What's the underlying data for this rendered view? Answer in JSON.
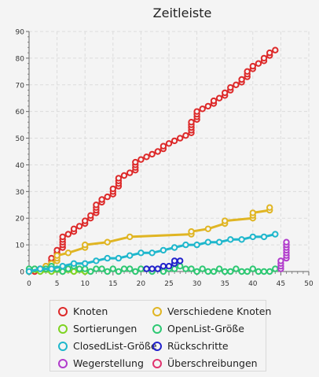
{
  "chart_data": {
    "type": "line",
    "title": "Zeitleiste",
    "xlabel": "",
    "ylabel": "",
    "xlim": [
      0,
      50
    ],
    "ylim": [
      0,
      90
    ],
    "xticks": [
      0,
      5,
      10,
      15,
      20,
      25,
      30,
      35,
      40,
      45,
      50
    ],
    "yticks": [
      0,
      10,
      20,
      30,
      40,
      50,
      60,
      70,
      80,
      90
    ],
    "grid": true,
    "legend_placement": "bottom",
    "series": [
      {
        "name": "Knoten",
        "color": "#dd2a2a",
        "points": [
          [
            0,
            0
          ],
          [
            1,
            0
          ],
          [
            2,
            1
          ],
          [
            3,
            2
          ],
          [
            4,
            3
          ],
          [
            4,
            4
          ],
          [
            4,
            5
          ],
          [
            5,
            6
          ],
          [
            5,
            7
          ],
          [
            5,
            8
          ],
          [
            6,
            9
          ],
          [
            6,
            10
          ],
          [
            6,
            11
          ],
          [
            6,
            12
          ],
          [
            6,
            13
          ],
          [
            7,
            14
          ],
          [
            8,
            15
          ],
          [
            8,
            16
          ],
          [
            9,
            17
          ],
          [
            10,
            18
          ],
          [
            10,
            19
          ],
          [
            11,
            20
          ],
          [
            11,
            21
          ],
          [
            12,
            22
          ],
          [
            12,
            23
          ],
          [
            12,
            24
          ],
          [
            12,
            25
          ],
          [
            13,
            26
          ],
          [
            13,
            27
          ],
          [
            14,
            28
          ],
          [
            15,
            29
          ],
          [
            15,
            30
          ],
          [
            15,
            31
          ],
          [
            16,
            32
          ],
          [
            16,
            33
          ],
          [
            16,
            34
          ],
          [
            16,
            35
          ],
          [
            17,
            36
          ],
          [
            18,
            37
          ],
          [
            19,
            38
          ],
          [
            19,
            39
          ],
          [
            19,
            40
          ],
          [
            19,
            41
          ],
          [
            20,
            42
          ],
          [
            21,
            43
          ],
          [
            22,
            44
          ],
          [
            23,
            45
          ],
          [
            24,
            46
          ],
          [
            24,
            47
          ],
          [
            25,
            48
          ],
          [
            26,
            49
          ],
          [
            27,
            50
          ],
          [
            28,
            51
          ],
          [
            29,
            52
          ],
          [
            29,
            53
          ],
          [
            29,
            54
          ],
          [
            29,
            55
          ],
          [
            29,
            56
          ],
          [
            30,
            57
          ],
          [
            30,
            58
          ],
          [
            30,
            59
          ],
          [
            30,
            60
          ],
          [
            31,
            61
          ],
          [
            32,
            62
          ],
          [
            33,
            63
          ],
          [
            33,
            64
          ],
          [
            34,
            65
          ],
          [
            35,
            66
          ],
          [
            35,
            67
          ],
          [
            36,
            68
          ],
          [
            36,
            69
          ],
          [
            37,
            70
          ],
          [
            38,
            71
          ],
          [
            38,
            72
          ],
          [
            39,
            73
          ],
          [
            39,
            74
          ],
          [
            39,
            75
          ],
          [
            40,
            76
          ],
          [
            40,
            77
          ],
          [
            41,
            78
          ],
          [
            42,
            79
          ],
          [
            42,
            80
          ],
          [
            43,
            81
          ],
          [
            43,
            82
          ],
          [
            44,
            83
          ]
        ]
      },
      {
        "name": "Verschiedene Knoten",
        "color": "#e0b523",
        "points": [
          [
            0,
            0
          ],
          [
            1,
            1
          ],
          [
            2,
            1
          ],
          [
            3,
            2
          ],
          [
            4,
            3
          ],
          [
            5,
            4
          ],
          [
            5,
            5
          ],
          [
            5,
            6
          ],
          [
            7,
            7
          ],
          [
            10,
            9
          ],
          [
            10,
            10
          ],
          [
            14,
            11
          ],
          [
            18,
            13
          ],
          [
            29,
            14
          ],
          [
            29,
            15
          ],
          [
            32,
            16
          ],
          [
            35,
            18
          ],
          [
            35,
            19
          ],
          [
            40,
            20
          ],
          [
            40,
            21
          ],
          [
            40,
            22
          ],
          [
            43,
            23
          ],
          [
            43,
            24
          ]
        ]
      },
      {
        "name": "Sortierungen",
        "color": "#7ed321",
        "points": [
          [
            0,
            0
          ],
          [
            2,
            0
          ],
          [
            4,
            0
          ],
          [
            6,
            0
          ],
          [
            8,
            0
          ],
          [
            10,
            0
          ]
        ]
      },
      {
        "name": "OpenList-Größe",
        "color": "#2ec873",
        "points": [
          [
            0,
            1
          ],
          [
            1,
            1
          ],
          [
            2,
            1
          ],
          [
            3,
            1
          ],
          [
            4,
            2
          ],
          [
            5,
            1
          ],
          [
            6,
            0
          ],
          [
            7,
            1
          ],
          [
            8,
            2
          ],
          [
            9,
            1
          ],
          [
            10,
            1
          ],
          [
            11,
            0
          ],
          [
            12,
            1
          ],
          [
            13,
            1
          ],
          [
            14,
            0
          ],
          [
            15,
            1
          ],
          [
            16,
            0
          ],
          [
            17,
            1
          ],
          [
            18,
            1
          ],
          [
            19,
            0
          ],
          [
            20,
            1
          ],
          [
            21,
            1
          ],
          [
            22,
            0
          ],
          [
            23,
            1
          ],
          [
            24,
            0
          ],
          [
            25,
            1
          ],
          [
            26,
            1
          ],
          [
            27,
            2
          ],
          [
            28,
            1
          ],
          [
            29,
            1
          ],
          [
            30,
            0
          ],
          [
            31,
            1
          ],
          [
            32,
            0
          ],
          [
            33,
            0
          ],
          [
            34,
            1
          ],
          [
            35,
            0
          ],
          [
            36,
            0
          ],
          [
            37,
            1
          ],
          [
            38,
            0
          ],
          [
            39,
            0
          ],
          [
            40,
            1
          ],
          [
            41,
            0
          ],
          [
            42,
            0
          ],
          [
            43,
            0
          ],
          [
            44,
            1
          ]
        ]
      },
      {
        "name": "ClosedList-Größe",
        "color": "#1fb7cc",
        "points": [
          [
            0,
            0
          ],
          [
            2,
            1
          ],
          [
            4,
            1
          ],
          [
            6,
            2
          ],
          [
            8,
            3
          ],
          [
            10,
            3
          ],
          [
            12,
            4
          ],
          [
            14,
            5
          ],
          [
            16,
            5
          ],
          [
            18,
            6
          ],
          [
            20,
            7
          ],
          [
            22,
            7
          ],
          [
            24,
            8
          ],
          [
            26,
            9
          ],
          [
            28,
            10
          ],
          [
            30,
            10
          ],
          [
            32,
            11
          ],
          [
            34,
            11
          ],
          [
            36,
            12
          ],
          [
            38,
            12
          ],
          [
            40,
            13
          ],
          [
            42,
            13
          ],
          [
            44,
            14
          ]
        ]
      },
      {
        "name": "Rückschritte",
        "color": "#2222cc",
        "points": [
          [
            21,
            1
          ],
          [
            22,
            1
          ],
          [
            23,
            1
          ],
          [
            24,
            2
          ],
          [
            25,
            2
          ],
          [
            26,
            3
          ],
          [
            26,
            4
          ],
          [
            27,
            4
          ]
        ]
      },
      {
        "name": "Wegerstellung",
        "color": "#b13ccc",
        "points": [
          [
            45,
            1
          ],
          [
            45,
            2
          ],
          [
            45,
            3
          ],
          [
            45,
            4
          ],
          [
            46,
            5
          ],
          [
            46,
            6
          ],
          [
            46,
            7
          ],
          [
            46,
            8
          ],
          [
            46,
            9
          ],
          [
            46,
            10
          ],
          [
            46,
            11
          ]
        ]
      },
      {
        "name": "Überschreibungen",
        "color": "#e0336e",
        "points": []
      }
    ]
  }
}
